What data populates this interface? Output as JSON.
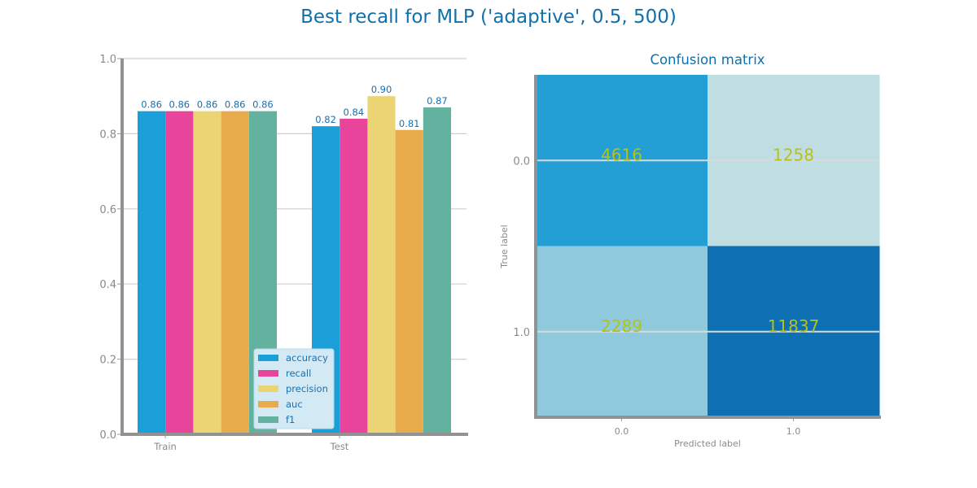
{
  "figure": {
    "suptitle": "Best recall for MLP ('adaptive', 0.5, 500)"
  },
  "chart_data": [
    {
      "type": "bar",
      "title": "",
      "xlabel": "",
      "ylabel": "",
      "categories": [
        "Train",
        "Test"
      ],
      "ylim": [
        0,
        1.0
      ],
      "yticks": [
        "0.0",
        "0.2",
        "0.4",
        "0.6",
        "0.8",
        "1.0"
      ],
      "grid": "horizontal",
      "legend_position": "bottom-right",
      "series": [
        {
          "name": "accuracy",
          "color": "#1a9fd8",
          "values": [
            0.86,
            0.82
          ],
          "labels": [
            "0.86",
            "0.82"
          ]
        },
        {
          "name": "recall",
          "color": "#e9449b",
          "values": [
            0.86,
            0.84
          ],
          "labels": [
            "0.86",
            "0.84"
          ]
        },
        {
          "name": "precision",
          "color": "#ebd473",
          "values": [
            0.86,
            0.9
          ],
          "labels": [
            "0.86",
            "0.90"
          ]
        },
        {
          "name": "auc",
          "color": "#e8ac4d",
          "values": [
            0.86,
            0.81
          ],
          "labels": [
            "0.86",
            "0.81"
          ]
        },
        {
          "name": "f1",
          "color": "#62b29f",
          "values": [
            0.86,
            0.87
          ],
          "labels": [
            "0.86",
            "0.87"
          ]
        }
      ]
    },
    {
      "type": "heatmap",
      "title": "Confusion matrix",
      "xlabel": "Predicted label",
      "ylabel": "True label",
      "x_categories": [
        "0.0",
        "1.0"
      ],
      "y_categories": [
        "0.0",
        "1.0"
      ],
      "values": [
        [
          4616,
          1258
        ],
        [
          2289,
          11837
        ]
      ],
      "cell_labels": [
        [
          "4616",
          "1258"
        ],
        [
          "2289",
          "11837"
        ]
      ],
      "cell_colors": [
        [
          "#239fd6",
          "#c0dee1"
        ],
        [
          "#8fc9dc",
          "#0e70b3"
        ]
      ],
      "label_color": "#b5c21a"
    }
  ]
}
